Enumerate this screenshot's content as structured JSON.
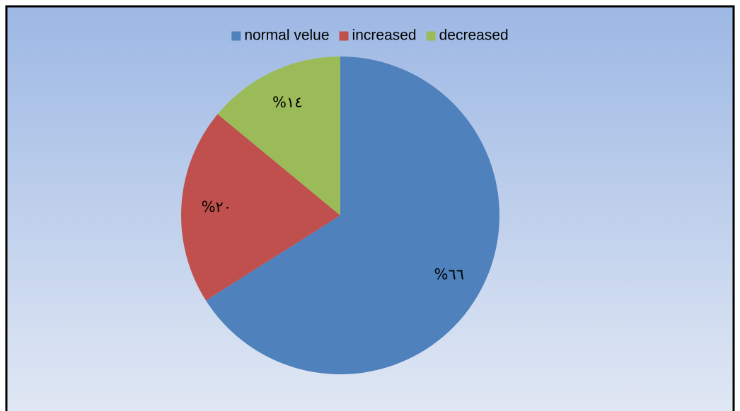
{
  "chart_data": {
    "type": "pie",
    "categories": [
      "normal velue",
      "increased",
      "decreased"
    ],
    "values": [
      66,
      20,
      14
    ],
    "value_labels": [
      "%٦٦",
      "%٢٠",
      "%١٤"
    ],
    "colors": [
      "#4f81bd",
      "#c0504d",
      "#9bbb59"
    ],
    "legend": "top"
  }
}
